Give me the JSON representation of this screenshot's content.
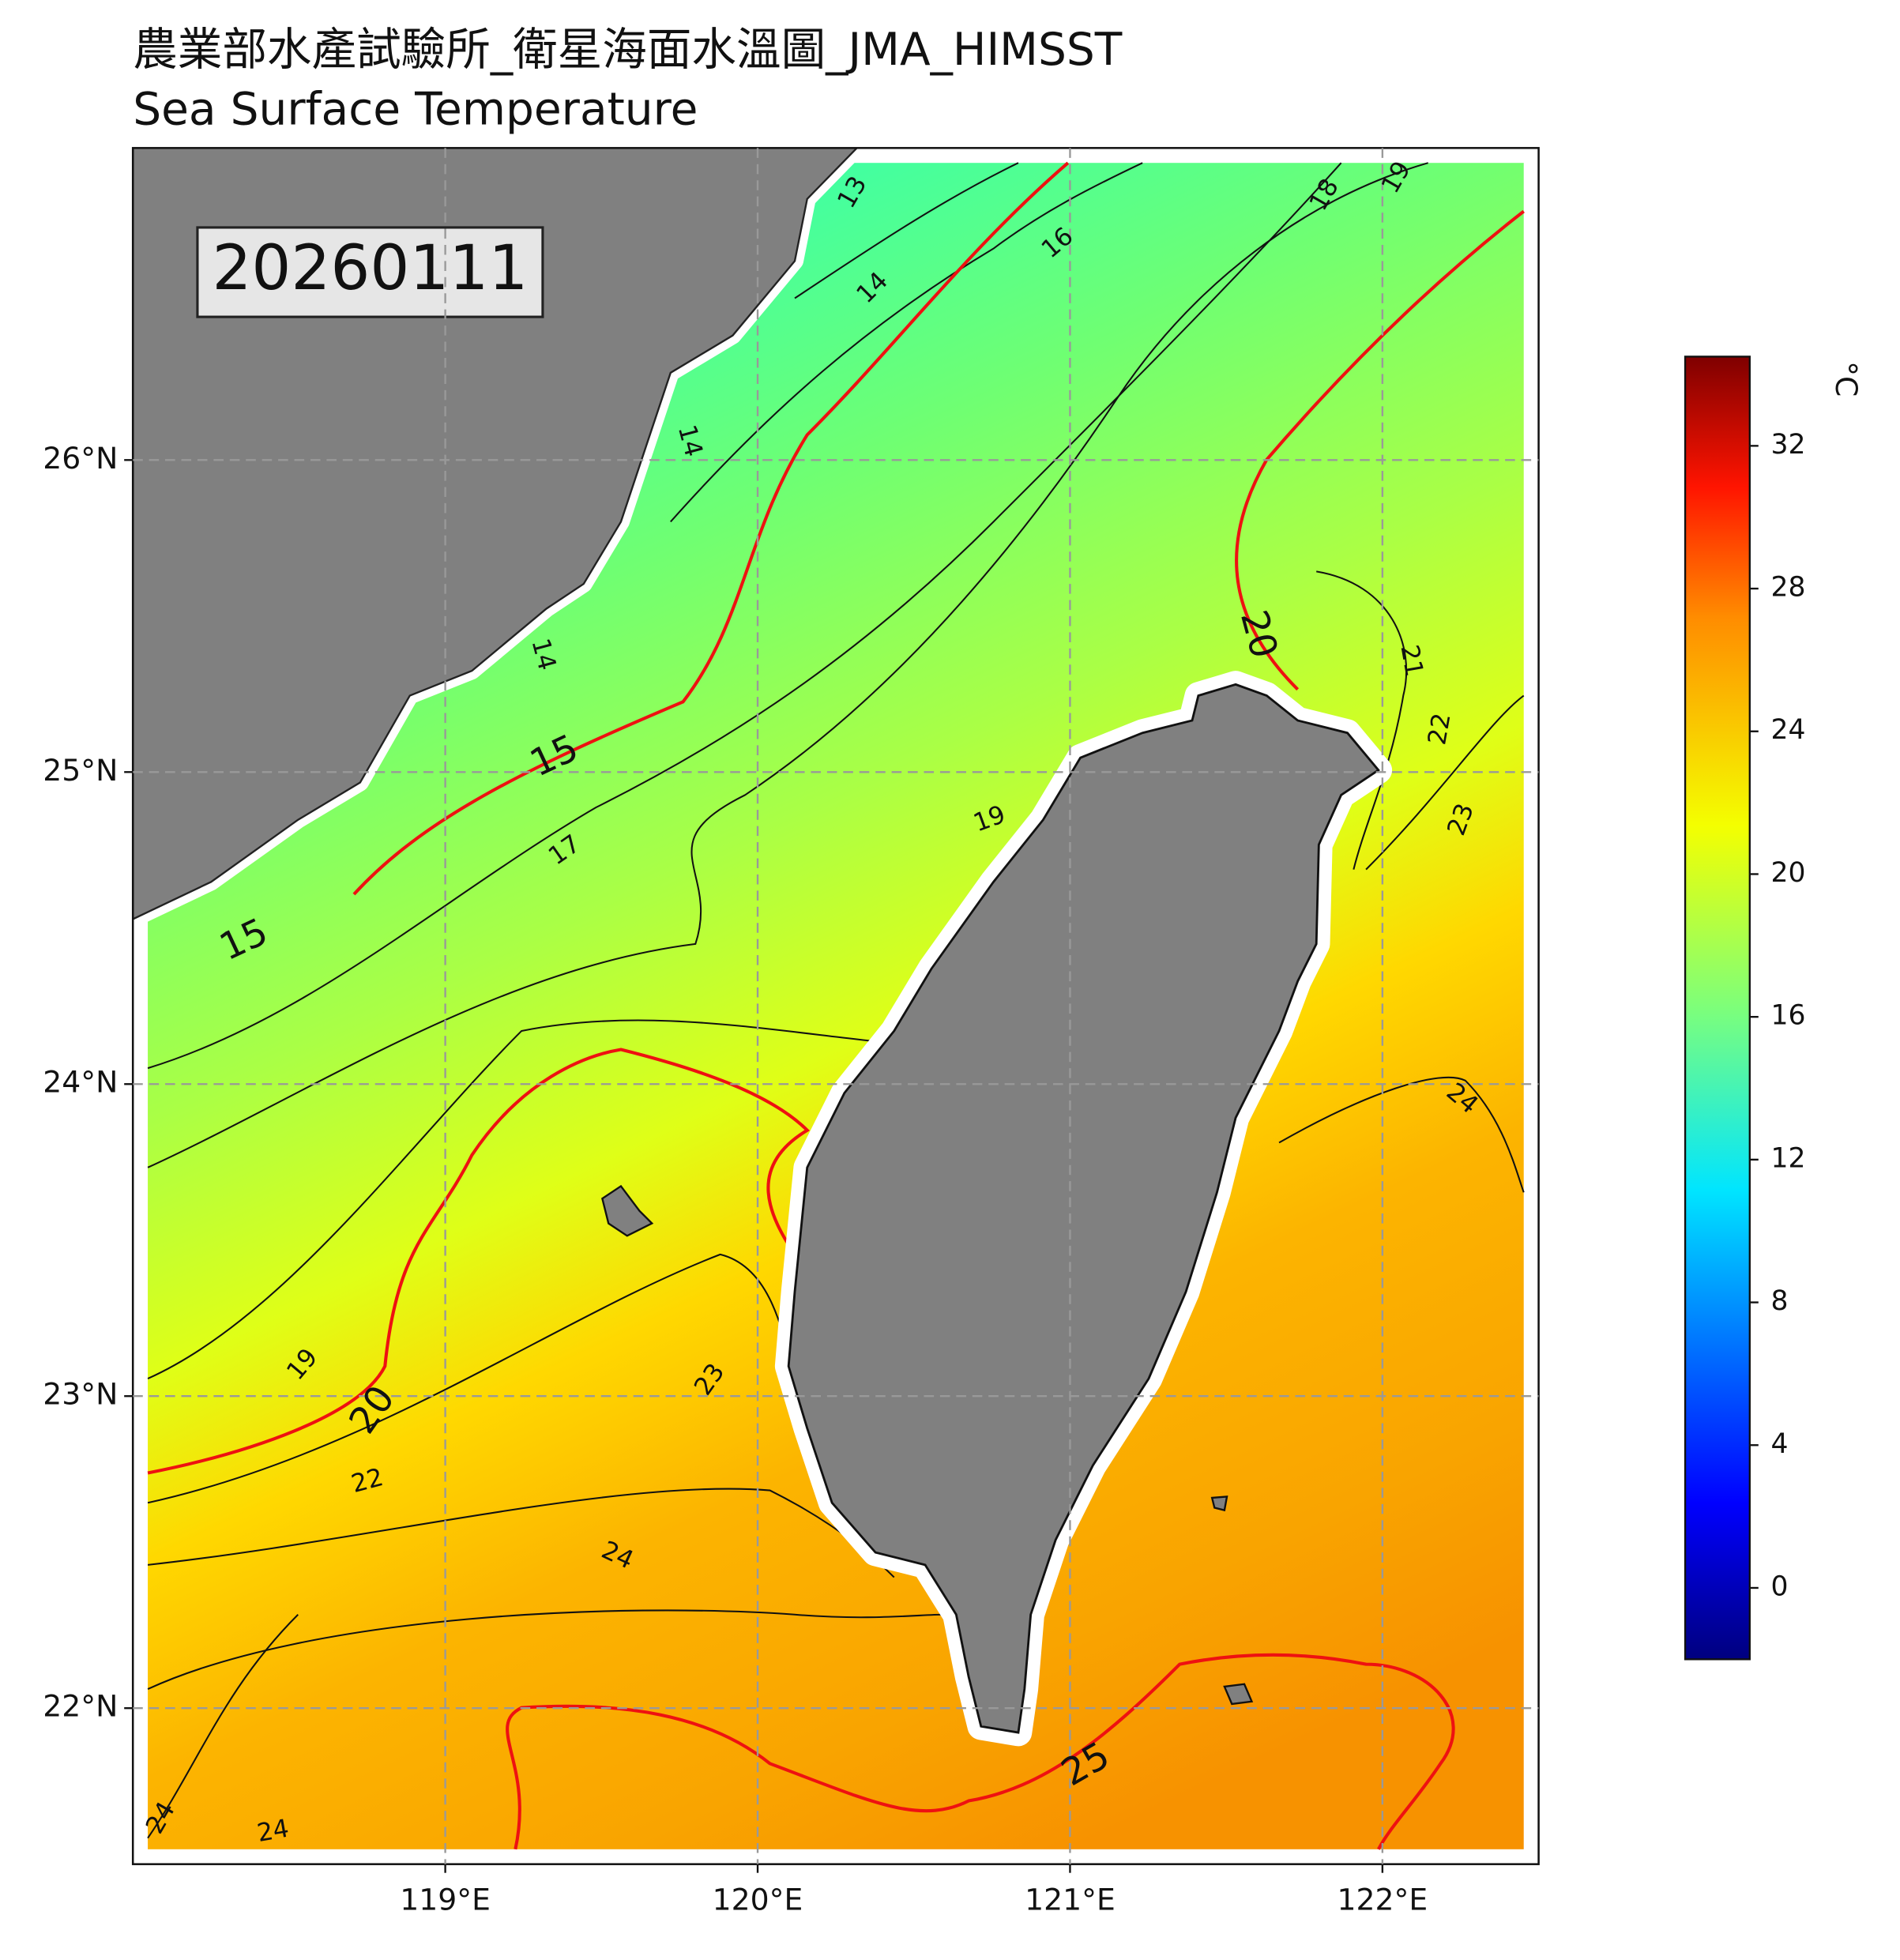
{
  "chart_data": {
    "type": "map",
    "title": "農業部水產試驗所_衛星海面水溫圖_JMA_HIMSST",
    "subtitle": "Sea Surface Temperature",
    "date": "20260111",
    "xlim": [
      118,
      122.5
    ],
    "ylim": [
      21.5,
      27
    ],
    "xticks": [
      {
        "value": 119,
        "label": "119°E"
      },
      {
        "value": 120,
        "label": "120°E"
      },
      {
        "value": 121,
        "label": "121°E"
      },
      {
        "value": 122,
        "label": "122°E"
      }
    ],
    "yticks": [
      {
        "value": 22,
        "label": "22°N"
      },
      {
        "value": 23,
        "label": "23°N"
      },
      {
        "value": 24,
        "label": "24°N"
      },
      {
        "value": 25,
        "label": "25°N"
      },
      {
        "value": 26,
        "label": "26°N"
      }
    ],
    "grid": true,
    "contour_labels": [
      13,
      14,
      14,
      14,
      15,
      15,
      16,
      17,
      18,
      19,
      19,
      19,
      20,
      20,
      21,
      22,
      22,
      23,
      23,
      24,
      24,
      24,
      24,
      25
    ],
    "colorbar": {
      "label": "°C",
      "lim": [
        -2,
        34.5
      ],
      "ticks": [
        0,
        4,
        8,
        12,
        16,
        20,
        24,
        28,
        32
      ]
    }
  }
}
